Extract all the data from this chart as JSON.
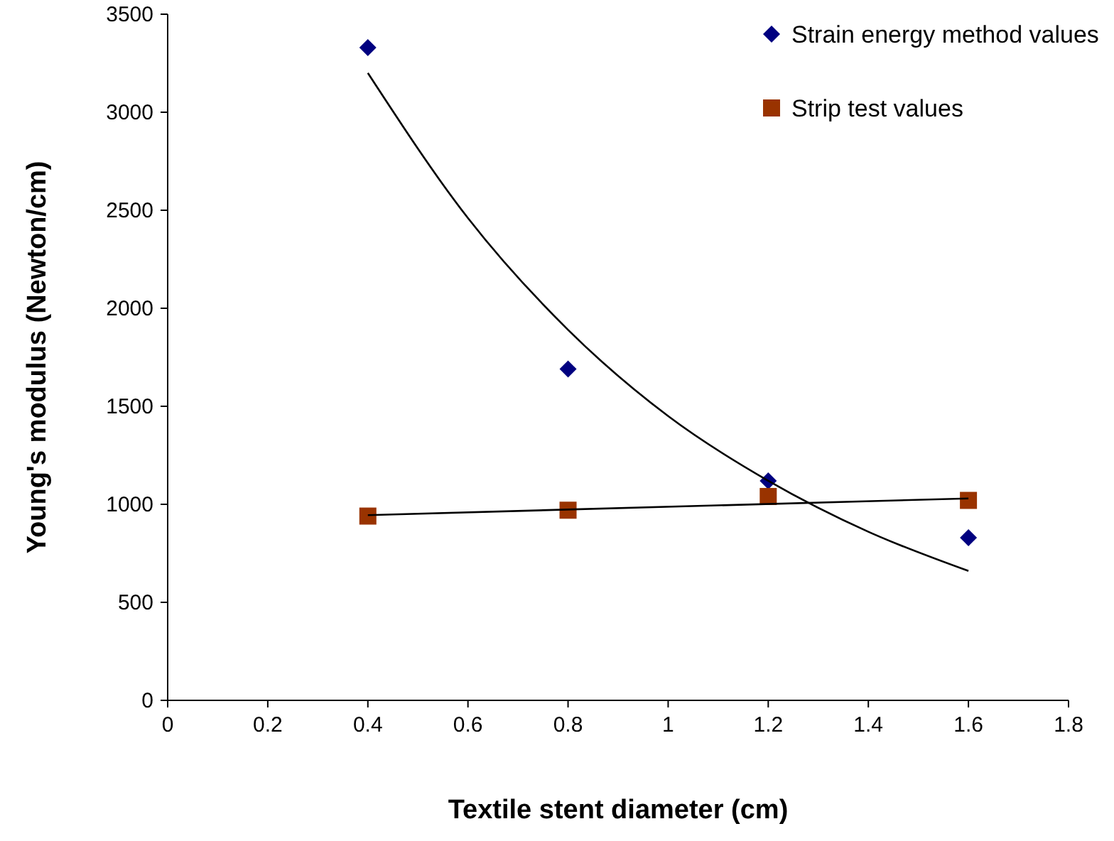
{
  "chart_data": {
    "type": "scatter",
    "xlabel": "Textile stent diameter (cm)",
    "ylabel": "Young's modulus (Newton/cm)",
    "xlim": [
      0,
      1.8
    ],
    "xticks": [
      0,
      0.2,
      0.4,
      0.6,
      0.8,
      1,
      1.2,
      1.4,
      1.6,
      1.8
    ],
    "ylim": [
      0,
      3500
    ],
    "yticks": [
      0,
      500,
      1000,
      1500,
      2000,
      2500,
      3000,
      3500
    ],
    "grid": false,
    "legend": "top right",
    "x": [
      0.4,
      0.8,
      1.2,
      1.6
    ],
    "series": [
      {
        "name": "Strain energy method values",
        "color": "#000080",
        "marker": "diamond",
        "values": [
          3330,
          1690,
          1120,
          830
        ]
      },
      {
        "name": "Strip test values",
        "color": "#993300",
        "marker": "square",
        "values": [
          940,
          970,
          1040,
          1020
        ]
      },
      {
        "type": "line",
        "color": "#000000",
        "marker": "none",
        "x": [
          0.4,
          0.6,
          0.8,
          1.0,
          1.2,
          1.4,
          1.6
        ],
        "values": [
          3200,
          2460,
          1890,
          1450,
          1120,
          860,
          660
        ]
      },
      {
        "type": "line",
        "color": "#000000",
        "marker": "none",
        "x": [
          0.4,
          1.6
        ],
        "values": [
          945,
          1030
        ]
      }
    ]
  }
}
